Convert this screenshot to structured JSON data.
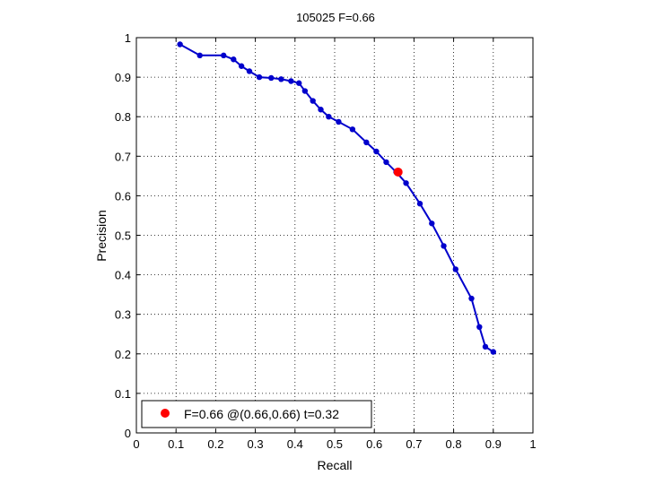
{
  "chart_data": {
    "type": "line",
    "title": "105025 F=0.66",
    "xlabel": "Recall",
    "ylabel": "Precision",
    "xlim": [
      0,
      1
    ],
    "ylim": [
      0,
      1
    ],
    "xticks": [
      "0",
      "0.1",
      "0.2",
      "0.3",
      "0.4",
      "0.5",
      "0.6",
      "0.7",
      "0.8",
      "0.9",
      "1"
    ],
    "yticks": [
      "0",
      "0.1",
      "0.2",
      "0.3",
      "0.4",
      "0.5",
      "0.6",
      "0.7",
      "0.8",
      "0.9",
      "1"
    ],
    "grid": true,
    "series": [
      {
        "color": "#0000cc",
        "x": [
          0.11,
          0.16,
          0.22,
          0.245,
          0.265,
          0.285,
          0.31,
          0.34,
          0.365,
          0.39,
          0.41,
          0.425,
          0.445,
          0.465,
          0.485,
          0.51,
          0.545,
          0.58,
          0.605,
          0.63,
          0.655,
          0.68,
          0.715,
          0.745,
          0.775,
          0.805,
          0.845,
          0.865,
          0.88,
          0.9
        ],
        "y": [
          0.983,
          0.955,
          0.955,
          0.945,
          0.928,
          0.915,
          0.9,
          0.898,
          0.895,
          0.89,
          0.885,
          0.865,
          0.84,
          0.818,
          0.8,
          0.787,
          0.768,
          0.735,
          0.712,
          0.685,
          0.66,
          0.632,
          0.58,
          0.53,
          0.473,
          0.414,
          0.34,
          0.268,
          0.218,
          0.205
        ]
      }
    ],
    "highlight": {
      "x": 0.66,
      "y": 0.66,
      "color": "#ff0000"
    },
    "legend": {
      "position": "bottom-left",
      "label": "F=0.66 @(0.66,0.66) t=0.32"
    }
  }
}
